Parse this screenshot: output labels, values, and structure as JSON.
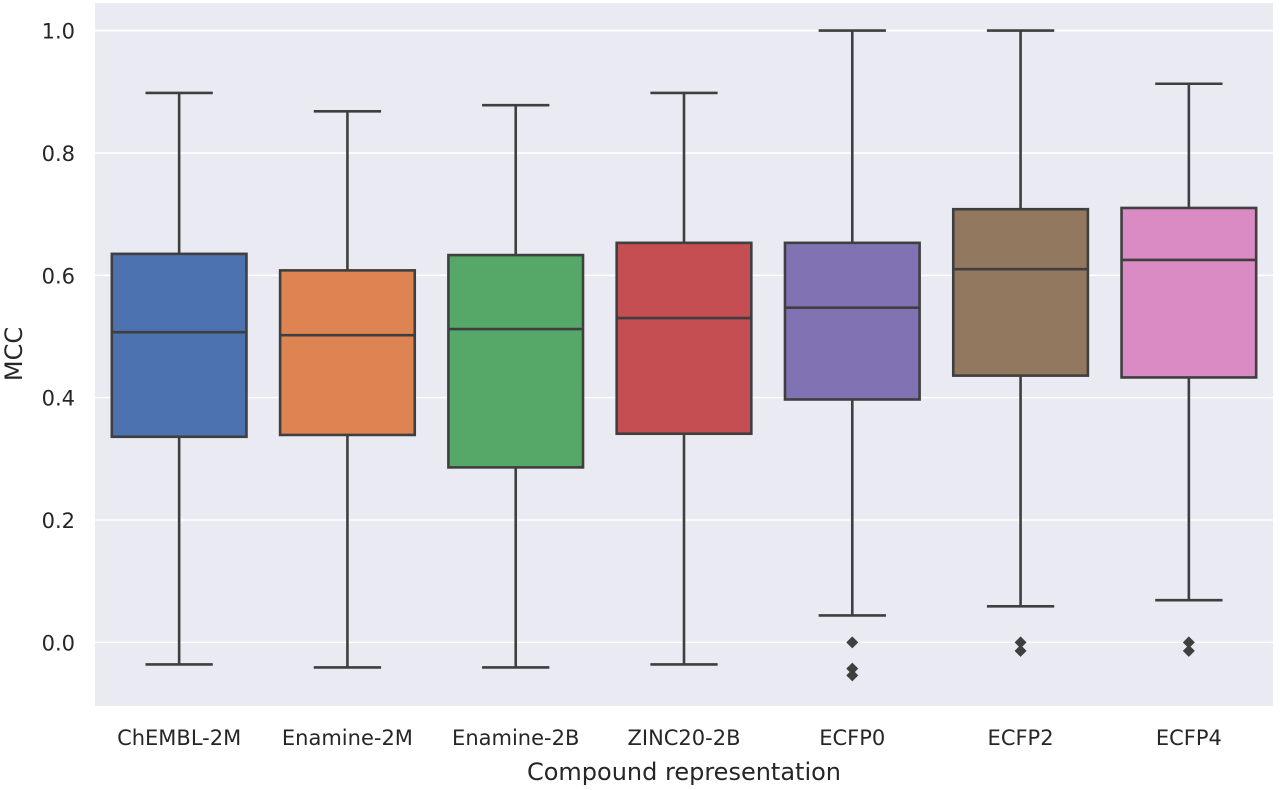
{
  "chart_data": {
    "type": "box",
    "title": "",
    "xlabel": "Compound representation",
    "ylabel": "MCC",
    "ylim": [
      -0.104,
      1.045
    ],
    "yticks": [
      "1.0",
      "0.8",
      "0.6",
      "0.4",
      "0.2",
      "0.0"
    ],
    "ytick_values": [
      1.0,
      0.8,
      0.6,
      0.4,
      0.2,
      0.0
    ],
    "grid": true,
    "legend": "none",
    "categories": [
      "ChEMBL-2M",
      "Enamine-2M",
      "Enamine-2B",
      "ZINC20-2B",
      "ECFP0",
      "ECFP2",
      "ECFP4"
    ],
    "boxes": [
      {
        "whisker_low": -0.036,
        "q1": 0.336,
        "median": 0.507,
        "q3": 0.635,
        "whisker_high": 0.898,
        "outliers": [],
        "color": "#4c72b0"
      },
      {
        "whisker_low": -0.041,
        "q1": 0.339,
        "median": 0.502,
        "q3": 0.608,
        "whisker_high": 0.868,
        "outliers": [],
        "color": "#dd8452"
      },
      {
        "whisker_low": -0.041,
        "q1": 0.286,
        "median": 0.512,
        "q3": 0.633,
        "whisker_high": 0.878,
        "outliers": [],
        "color": "#55a868"
      },
      {
        "whisker_low": -0.036,
        "q1": 0.341,
        "median": 0.53,
        "q3": 0.653,
        "whisker_high": 0.898,
        "outliers": [],
        "color": "#c44e52"
      },
      {
        "whisker_low": 0.044,
        "q1": 0.397,
        "median": 0.547,
        "q3": 0.653,
        "whisker_high": 1.0,
        "outliers": [
          0.0,
          -0.043,
          -0.054
        ],
        "color": "#8172b3"
      },
      {
        "whisker_low": 0.059,
        "q1": 0.436,
        "median": 0.61,
        "q3": 0.708,
        "whisker_high": 1.0,
        "outliers": [
          0.0,
          -0.014
        ],
        "color": "#937860"
      },
      {
        "whisker_low": 0.069,
        "q1": 0.433,
        "median": 0.625,
        "q3": 0.71,
        "whisker_high": 0.913,
        "outliers": [
          0.0,
          -0.014
        ],
        "color": "#da8bc3"
      }
    ]
  }
}
